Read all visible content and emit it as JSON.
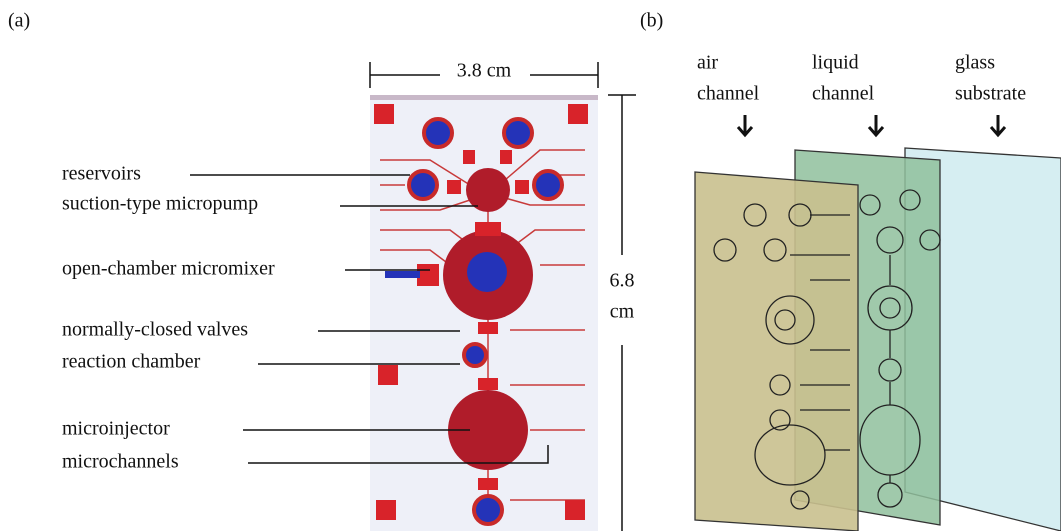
{
  "panel_a": {
    "label": "(a)",
    "width": "3.8 cm",
    "height_lines": [
      "6.8",
      "cm"
    ],
    "annotations": [
      "reservoirs",
      "suction-type micropump",
      "open-chamber micromixer",
      "normally-closed valves",
      "reaction chamber",
      "microinjector",
      "microchannels"
    ]
  },
  "panel_b": {
    "label": "(b)",
    "layers": [
      {
        "lines": [
          "air",
          "channel"
        ]
      },
      {
        "lines": [
          "liquid",
          "channel"
        ]
      },
      {
        "lines": [
          "glass",
          "substrate"
        ]
      }
    ]
  }
}
